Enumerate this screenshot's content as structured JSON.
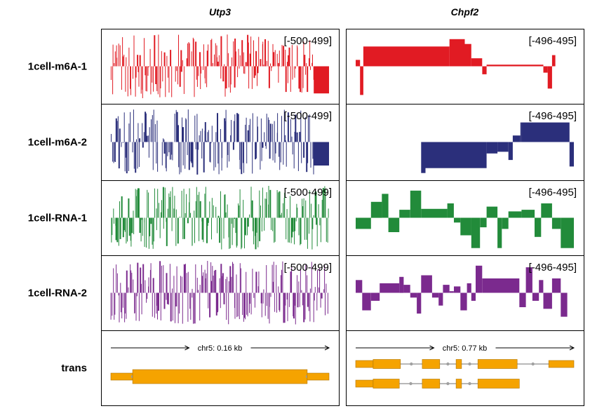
{
  "chart_data": {
    "type": "genome-browser-tracks",
    "genes": [
      {
        "name": "Utp3",
        "range_label": "[-500-499]",
        "locus_label": "chr5: 0.16 kb",
        "transcripts": [
          {
            "exons": [
              [
                0.0,
                0.1
              ],
              [
                0.1,
                0.9
              ],
              [
                0.9,
                1.0
              ]
            ],
            "thick": [
              0.1,
              0.9
            ]
          }
        ]
      },
      {
        "name": "Chpf2",
        "range_label": "[-496-495]",
        "locus_label": "chr5: 0.77 kb",
        "transcripts": [
          {
            "exons": [
              [
                0.0,
                0.205
              ],
              [
                0.305,
                0.385
              ],
              [
                0.46,
                0.485
              ],
              [
                0.56,
                0.74
              ],
              [
                0.885,
                1.0
              ]
            ],
            "thick": [
              0.08,
              0.74
            ]
          },
          {
            "exons": [
              [
                0.0,
                0.2
              ],
              [
                0.305,
                0.385
              ],
              [
                0.46,
                0.485
              ],
              [
                0.56,
                0.75
              ]
            ],
            "thick": [
              0.08,
              0.75
            ]
          }
        ]
      }
    ],
    "tracks": [
      {
        "name": "1cell-m6A-1",
        "color": "#e11b23",
        "data": [
          {
            "gene": "Utp3",
            "style": "spiky",
            "seed": 11,
            "density": 0.92,
            "tail": {
              "from": 0.93,
              "value": -0.85
            }
          },
          {
            "gene": "Chpf2",
            "style": "segments",
            "segments": [
              [
                0.0,
                0.02,
                0.2
              ],
              [
                0.02,
                0.035,
                -0.9
              ],
              [
                0.035,
                0.43,
                0.62
              ],
              [
                0.43,
                0.5,
                0.85
              ],
              [
                0.5,
                0.53,
                0.7
              ],
              [
                0.53,
                0.58,
                0.25
              ],
              [
                0.58,
                0.6,
                -0.25
              ],
              [
                0.6,
                0.86,
                0.05
              ],
              [
                0.86,
                0.88,
                -0.2
              ],
              [
                0.88,
                0.9,
                -0.7
              ],
              [
                0.9,
                0.915,
                0.35
              ]
            ]
          }
        ]
      },
      {
        "name": "1cell-m6A-2",
        "color": "#2b2f7b",
        "data": [
          {
            "gene": "Utp3",
            "style": "spiky",
            "seed": 23,
            "density": 0.9,
            "tail": {
              "from": 0.93,
              "value": -0.72
            }
          },
          {
            "gene": "Chpf2",
            "style": "segments",
            "segments": [
              [
                0.3,
                0.32,
                -0.95
              ],
              [
                0.32,
                0.6,
                -0.8
              ],
              [
                0.6,
                0.65,
                -0.35
              ],
              [
                0.65,
                0.7,
                -0.3
              ],
              [
                0.7,
                0.72,
                -0.55
              ],
              [
                0.72,
                0.755,
                0.2
              ],
              [
                0.755,
                0.76,
                0.6
              ],
              [
                0.76,
                0.98,
                0.6
              ],
              [
                0.98,
                1.0,
                -0.75
              ]
            ]
          }
        ]
      },
      {
        "name": "1cell-RNA-1",
        "color": "#228b3a",
        "data": [
          {
            "gene": "Utp3",
            "style": "spiky",
            "seed": 37,
            "density": 0.95,
            "tail": null
          },
          {
            "gene": "Chpf2",
            "style": "segments",
            "segments": [
              [
                0.0,
                0.07,
                -0.35
              ],
              [
                0.07,
                0.12,
                0.5
              ],
              [
                0.12,
                0.15,
                0.75
              ],
              [
                0.15,
                0.2,
                -0.45
              ],
              [
                0.2,
                0.25,
                0.25
              ],
              [
                0.25,
                0.3,
                0.85
              ],
              [
                0.3,
                0.42,
                0.28
              ],
              [
                0.42,
                0.45,
                0.45
              ],
              [
                0.45,
                0.48,
                -0.15
              ],
              [
                0.48,
                0.53,
                -0.55
              ],
              [
                0.53,
                0.57,
                -0.95
              ],
              [
                0.57,
                0.6,
                -0.3
              ],
              [
                0.6,
                0.65,
                0.35
              ],
              [
                0.65,
                0.67,
                -0.95
              ],
              [
                0.67,
                0.7,
                -0.35
              ],
              [
                0.7,
                0.76,
                0.2
              ],
              [
                0.76,
                0.82,
                0.25
              ],
              [
                0.82,
                0.85,
                -0.6
              ],
              [
                0.85,
                0.9,
                0.45
              ],
              [
                0.9,
                0.94,
                -0.35
              ],
              [
                0.94,
                1.0,
                -0.95
              ]
            ]
          }
        ]
      },
      {
        "name": "1cell-RNA-2",
        "color": "#7b2a8e",
        "data": [
          {
            "gene": "Utp3",
            "style": "spiky",
            "seed": 53,
            "density": 0.93,
            "tail": null
          },
          {
            "gene": "Chpf2",
            "style": "segments",
            "segments": [
              [
                0.0,
                0.03,
                0.4
              ],
              [
                0.03,
                0.07,
                -0.55
              ],
              [
                0.07,
                0.11,
                -0.25
              ],
              [
                0.11,
                0.2,
                0.3
              ],
              [
                0.2,
                0.22,
                0.5
              ],
              [
                0.22,
                0.25,
                0.25
              ],
              [
                0.25,
                0.28,
                -0.15
              ],
              [
                0.28,
                0.3,
                -0.65
              ],
              [
                0.3,
                0.35,
                0.55
              ],
              [
                0.35,
                0.38,
                -0.15
              ],
              [
                0.38,
                0.4,
                -0.4
              ],
              [
                0.4,
                0.43,
                0.25
              ],
              [
                0.43,
                0.45,
                0.05
              ],
              [
                0.45,
                0.48,
                0.2
              ],
              [
                0.48,
                0.51,
                -0.55
              ],
              [
                0.51,
                0.53,
                0.3
              ],
              [
                0.53,
                0.55,
                -0.25
              ],
              [
                0.55,
                0.58,
                0.85
              ],
              [
                0.58,
                0.75,
                0.45
              ],
              [
                0.75,
                0.78,
                -0.45
              ],
              [
                0.78,
                0.81,
                0.8
              ],
              [
                0.81,
                0.84,
                -0.25
              ],
              [
                0.84,
                0.86,
                0.4
              ],
              [
                0.86,
                0.9,
                -0.5
              ],
              [
                0.9,
                0.94,
                0.45
              ],
              [
                0.94,
                0.97,
                -0.75
              ]
            ]
          }
        ]
      }
    ],
    "annotation_track": {
      "name": "trans",
      "color": "#f5a300",
      "border_color": "#b07400",
      "intron_color": "#a0a0a0"
    }
  }
}
